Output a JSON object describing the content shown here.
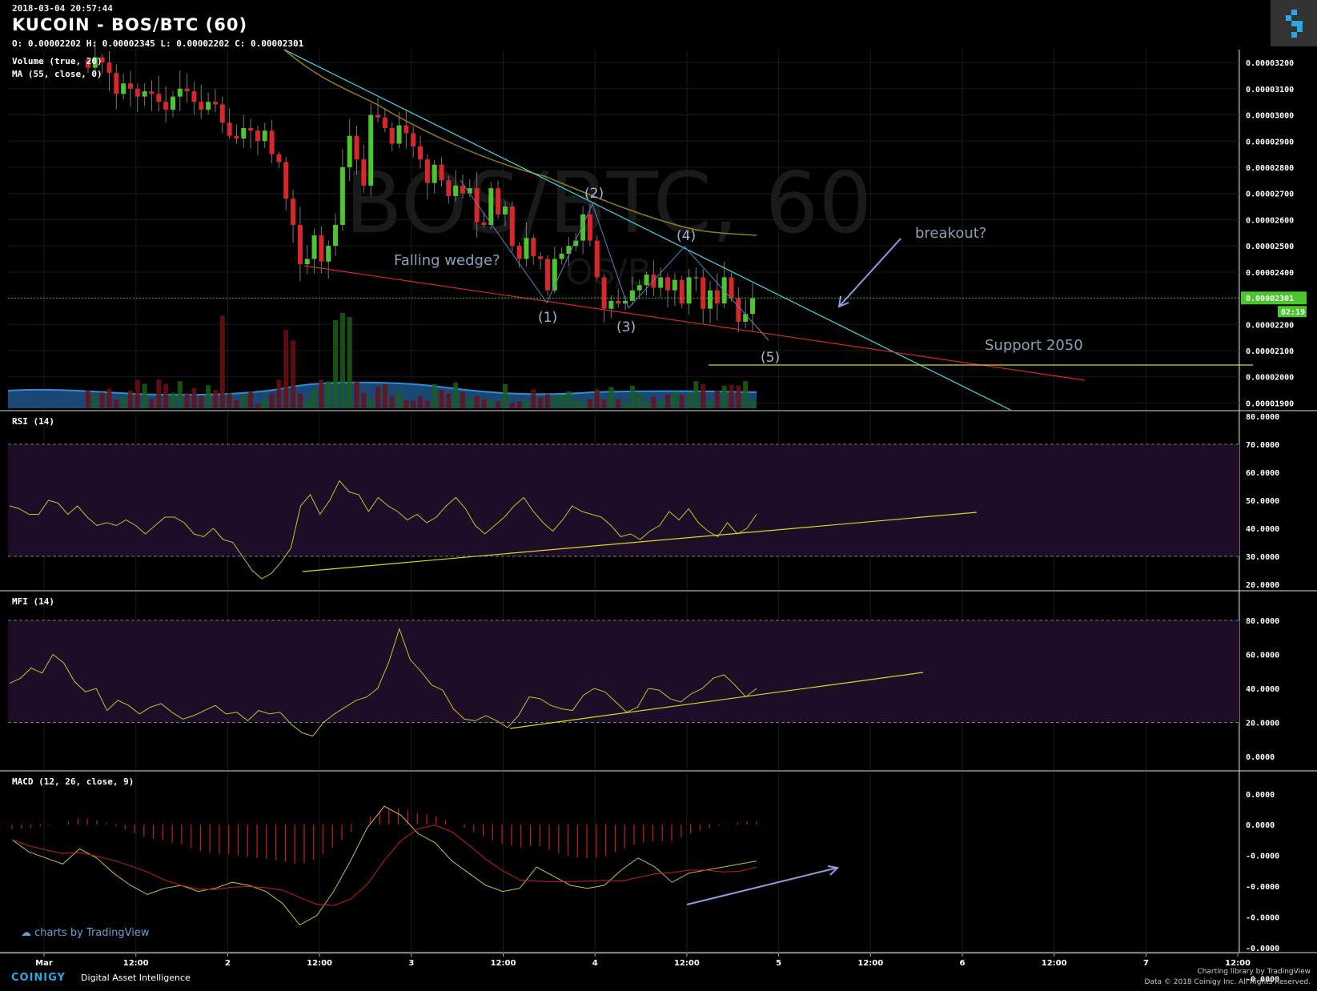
{
  "header": {
    "timestamp": "2018-03-04 20:57:44",
    "title": "KUCOIN - BOS/BTC (60)",
    "ohlc": "O: 0.00002202 H: 0.00002345 L: 0.00002202 C: 0.00002301",
    "watermark": "BOS/BTC, 60",
    "watermark_sub": "OS/B"
  },
  "indicators": {
    "volume": "Volume (true, 20)",
    "ma": "MA (55, close, 0)",
    "rsi": "RSI (14)",
    "mfi": "MFI (14)",
    "macd": "MACD (12, 26, close, 9)"
  },
  "annotations": {
    "falling_wedge": "Falling wedge?",
    "breakout": "breakout?",
    "support": "Support 2050",
    "wave1": "(1)",
    "wave2": "(2)",
    "wave3": "(3)",
    "wave4": "(4)",
    "wave5": "(5)"
  },
  "price_axis": {
    "ticks": [
      "0.00003200",
      "0.00003100",
      "0.00003000",
      "0.00002900",
      "0.00002800",
      "0.00002700",
      "0.00002600",
      "0.00002500",
      "0.00002400",
      "0.00002200",
      "0.00002100",
      "0.00002000",
      "0.00001900"
    ],
    "last_price": "0.00002301",
    "countdown": "02:19"
  },
  "rsi_axis": [
    "80.0000",
    "70.0000",
    "60.0000",
    "50.0000",
    "40.0000",
    "30.0000",
    "20.0000"
  ],
  "mfi_axis": [
    "80.0000",
    "60.0000",
    "40.0000",
    "20.0000",
    "0.0000"
  ],
  "macd_axis": [
    "0.0000",
    "0.0000",
    "-0.0000",
    "-0.0000",
    "-0.0000",
    "-0.0000",
    "-0.0000"
  ],
  "time_axis": [
    "Mar",
    "12:00",
    "2",
    "12:00",
    "3",
    "12:00",
    "4",
    "12:00",
    "5",
    "12:00",
    "6",
    "12:00",
    "7",
    "12:00"
  ],
  "footer": {
    "brand": "COINIGY",
    "tagline": "Digital Asset Intelligence",
    "tv_credit": "charts by TradingView",
    "charting": "Charting library by",
    "tv_brand": "TradingView",
    "copyright": "Data © 2018",
    "company": "Coinigy Inc. All Rights Reserved."
  },
  "colors": {
    "up": "#4bc62e",
    "down": "#d8262b",
    "ma": "#8b7d1e",
    "trend_upper": "#3fd8e0",
    "trend_lower": "#d8262b",
    "support": "#d8d820",
    "rsi_line": "#c8c032",
    "band_fill": "#1d0d26",
    "volume_ma": "#1d6fa8",
    "annotation": "#9fb7d6"
  },
  "chart_data": [
    {
      "type": "candlestick",
      "title": "KUCOIN - BOS/BTC (60)",
      "y_range": [
        1.88e-05,
        3.24e-05
      ],
      "x_labels": [
        "Mar",
        "12:00",
        "2",
        "12:00",
        "3",
        "12:00",
        "4",
        "12:00",
        "5",
        "12:00",
        "6",
        "12:00",
        "7",
        "12:00"
      ],
      "close": [
        3.18e-05,
        3.22e-05,
        3.2e-05,
        3.16e-05,
        3.08e-05,
        3.12e-05,
        3.1e-05,
        3.07e-05,
        3.09e-05,
        3.08e-05,
        3.05e-05,
        3.02e-05,
        3.07e-05,
        3.1e-05,
        3.09e-05,
        3.05e-05,
        3.02e-05,
        3.05e-05,
        3.04e-05,
        2.97e-05,
        2.92e-05,
        2.91e-05,
        2.95e-05,
        2.94e-05,
        2.9e-05,
        2.94e-05,
        2.85e-05,
        2.82e-05,
        2.68e-05,
        2.58e-05,
        2.43e-05,
        2.45e-05,
        2.54e-05,
        2.44e-05,
        2.5e-05,
        2.58e-05,
        2.8e-05,
        2.92e-05,
        2.83e-05,
        2.73e-05,
        3e-05,
        2.99e-05,
        2.95e-05,
        2.89e-05,
        2.96e-05,
        2.93e-05,
        2.88e-05,
        2.83e-05,
        2.74e-05,
        2.81e-05,
        2.75e-05,
        2.69e-05,
        2.73e-05,
        2.7e-05,
        2.72e-05,
        2.59e-05,
        2.58e-05,
        2.72e-05,
        2.62e-05,
        2.65e-05,
        2.5e-05,
        2.45e-05,
        2.53e-05,
        2.46e-05,
        2.45e-05,
        2.33e-05,
        2.45e-05,
        2.47e-05,
        2.5e-05,
        2.52e-05,
        2.62e-05,
        2.52e-05,
        2.38e-05,
        2.26e-05,
        2.29e-05,
        2.28e-05,
        2.29e-05,
        2.33e-05,
        2.35e-05,
        2.39e-05,
        2.34e-05,
        2.38e-05,
        2.33e-05,
        2.37e-05,
        2.28e-05,
        2.38e-05,
        2.38e-05,
        2.26e-05,
        2.33e-05,
        2.28e-05,
        2.38e-05,
        2.3e-05,
        2.21e-05,
        2.24e-05,
        2.3e-05
      ],
      "rsi": [
        48,
        47,
        45,
        45,
        50,
        49,
        45,
        48,
        44,
        41,
        42,
        41,
        43,
        41,
        38,
        41,
        44,
        44,
        42,
        38,
        37,
        40,
        36,
        35,
        30,
        25,
        22,
        24,
        28,
        33,
        48,
        52,
        45,
        50,
        57,
        53,
        52,
        46,
        51,
        48,
        46,
        43,
        45,
        42,
        44,
        48,
        51,
        47,
        41,
        38,
        41,
        44,
        48,
        51,
        46,
        42,
        39,
        43,
        48,
        46,
        45,
        44,
        41,
        37,
        38,
        36,
        39,
        41,
        46,
        43,
        47,
        42,
        39,
        37,
        42,
        38,
        40,
        45
      ],
      "mfi": [
        43,
        46,
        52,
        49,
        60,
        55,
        44,
        38,
        40,
        27,
        33,
        30,
        25,
        29,
        31,
        26,
        22,
        24,
        27,
        30,
        25,
        26,
        21,
        27,
        25,
        26,
        19,
        14,
        12,
        20,
        25,
        29,
        33,
        35,
        40,
        55,
        75,
        57,
        50,
        42,
        39,
        28,
        22,
        21,
        24,
        21,
        17,
        24,
        35,
        34,
        30,
        28,
        27,
        36,
        40,
        38,
        32,
        26,
        29,
        40,
        39,
        34,
        32,
        37,
        40,
        46,
        48,
        42,
        35,
        40
      ],
      "macd_line": [
        -0.5,
        -0.9,
        -1.1,
        -1.3,
        -0.8,
        -1.1,
        -1.6,
        -2.0,
        -2.3,
        -2.1,
        -2.0,
        -2.2,
        -2.1,
        -1.9,
        -2.0,
        -2.2,
        -2.6,
        -3.3,
        -3.0,
        -2.2,
        -1.2,
        -0.1,
        0.6,
        0.3,
        -0.3,
        -0.6,
        -1.2,
        -1.6,
        -2.0,
        -2.2,
        -2.1,
        -1.4,
        -1.7,
        -2.0,
        -2.1,
        -2.0,
        -1.5,
        -1.1,
        -1.4,
        -1.9,
        -1.6,
        -1.5,
        -1.4,
        -1.3,
        -1.2
      ]
    }
  ]
}
